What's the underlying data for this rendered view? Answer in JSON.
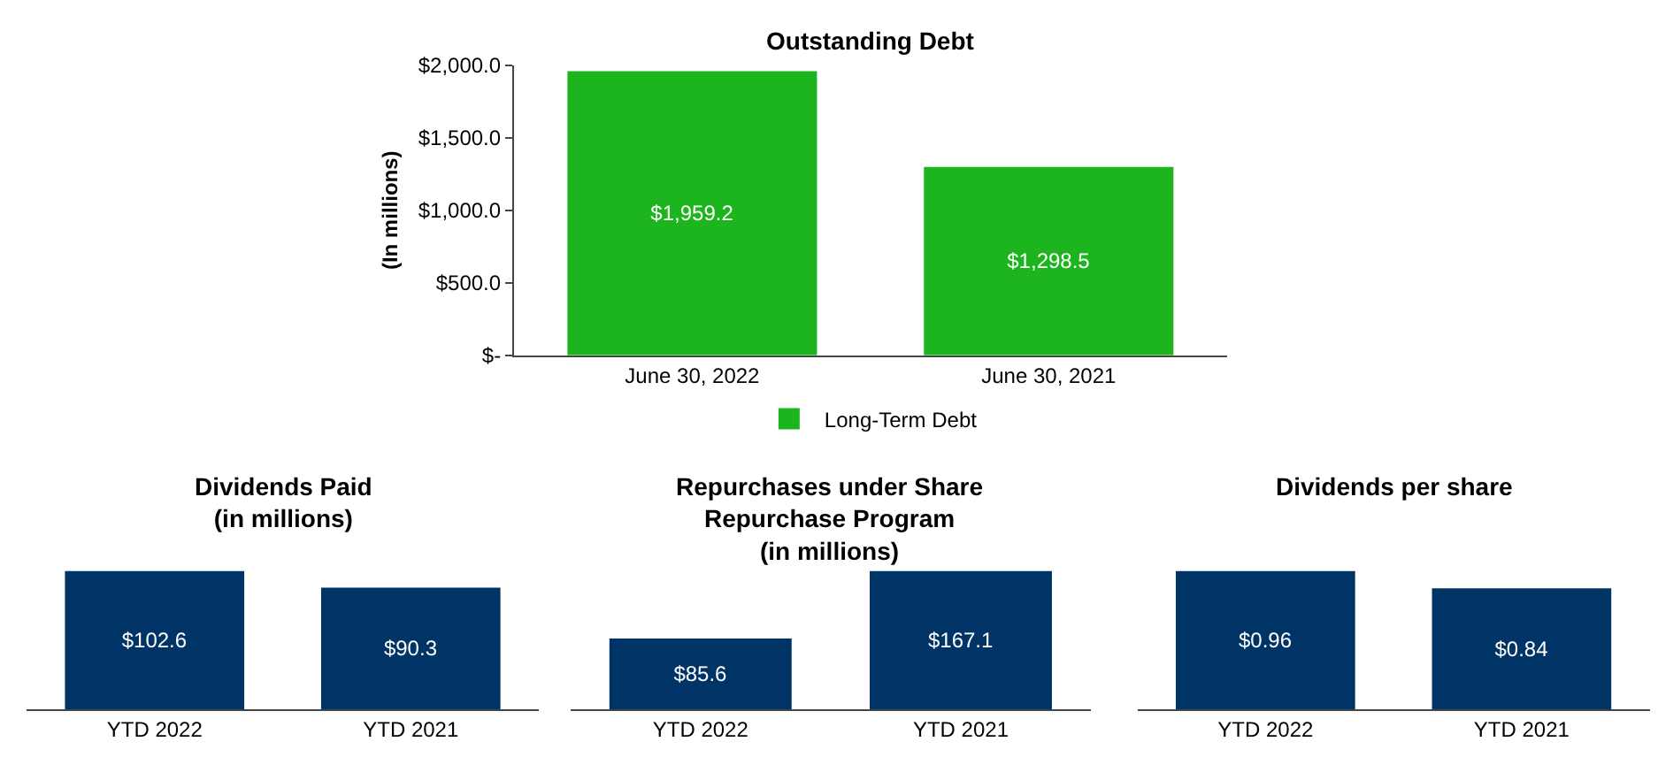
{
  "chart_data": [
    {
      "type": "bar",
      "title": "Outstanding Debt",
      "ylabel": "(In millions)",
      "categories": [
        "June 30, 2022",
        "June 30, 2021"
      ],
      "series": [
        {
          "name": "Long-Term Debt",
          "color": "#1db51d",
          "values": [
            1959.2,
            1298.5
          ],
          "value_labels": [
            "$1,959.2",
            "$1,298.5"
          ]
        }
      ],
      "ylim": [
        0,
        2000
      ],
      "yticks": [
        {
          "value": 0,
          "label": "$-"
        },
        {
          "value": 500,
          "label": "$500.0"
        },
        {
          "value": 1000,
          "label": "$1,000.0"
        },
        {
          "value": 1500,
          "label": "$1,500.0"
        },
        {
          "value": 2000,
          "label": "$2,000.0"
        }
      ],
      "legend": "bottom"
    },
    {
      "type": "bar",
      "title": "Dividends Paid\n(in millions)",
      "categories": [
        "YTD 2022",
        "YTD 2021"
      ],
      "values": [
        102.6,
        90.3
      ],
      "value_labels": [
        "$102.6",
        "$90.3"
      ],
      "color": "#003366",
      "tick_labels": "x",
      "legend": false
    },
    {
      "type": "bar",
      "title": "Repurchases under Share\nRepurchase Program\n(in millions)",
      "categories": [
        "YTD 2022",
        "YTD 2021"
      ],
      "values": [
        85.6,
        167.1
      ],
      "value_labels": [
        "$85.6",
        "$167.1"
      ],
      "color": "#003366",
      "tick_labels": "x",
      "legend": false
    },
    {
      "type": "bar",
      "title": "Dividends per share",
      "categories": [
        "YTD 2022",
        "YTD 2021"
      ],
      "values": [
        0.96,
        0.84
      ],
      "value_labels": [
        "$0.96",
        "$0.84"
      ],
      "color": "#003366",
      "tick_labels": "x",
      "legend": false
    }
  ]
}
